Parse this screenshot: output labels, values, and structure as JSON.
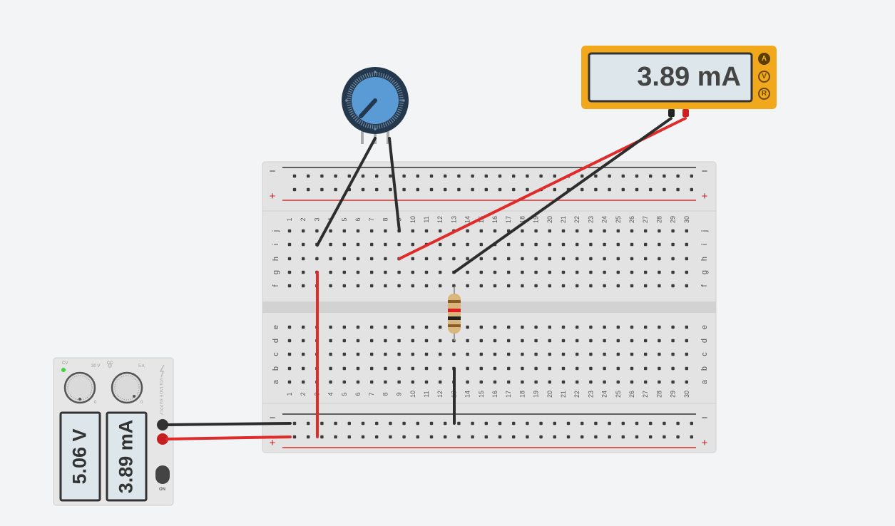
{
  "multimeter": {
    "reading": "3.89 mA",
    "modes": [
      "A",
      "V",
      "R"
    ],
    "active_mode": "A"
  },
  "power_supply": {
    "voltage_display": "5.06 V",
    "current_display": "3.89 mA",
    "cv_label": "CV",
    "cc_label": "CC",
    "voltage_max": "30 V",
    "current_max": "5 A",
    "knob_min_v": "0",
    "knob_min_a": "0",
    "brand": "VOLTAGE SUPPLY",
    "switch_label": "ON"
  },
  "breadboard": {
    "columns": 30,
    "row_letters_top": [
      "j",
      "i",
      "h",
      "g",
      "f"
    ],
    "row_letters_bottom": [
      "e",
      "d",
      "c",
      "b",
      "a"
    ],
    "rail_minus": "−",
    "rail_plus": "+"
  },
  "colors": {
    "wire_red": "#e02b2b",
    "wire_black": "#2d2d2d",
    "multimeter_body": "#f2a81d",
    "pot_blue": "#5b9bd5",
    "led_green": "#3fd33f"
  }
}
